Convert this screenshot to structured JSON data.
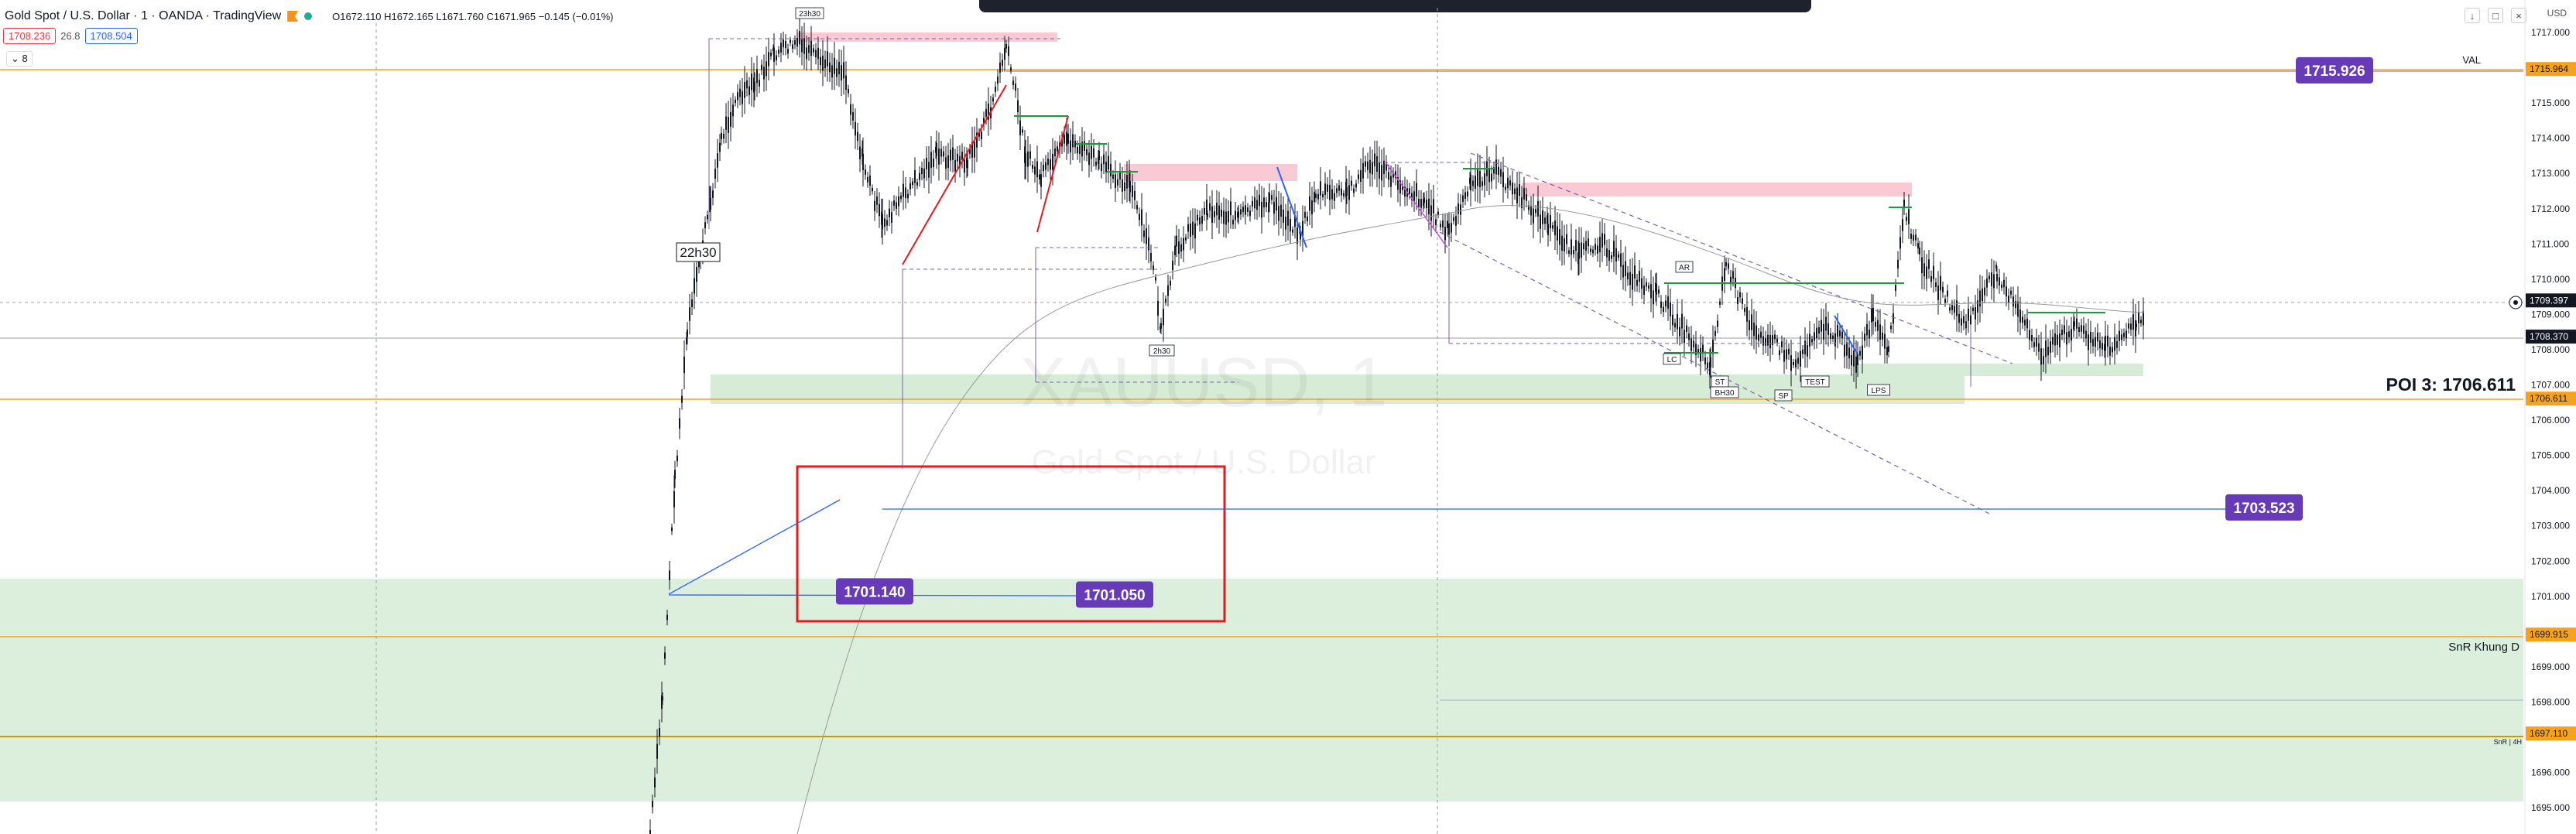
{
  "header": {
    "symbol": "Gold Spot / U.S. Dollar · 1 · OANDA · TradingView",
    "ohlc": "O1672.110 H1672.165 L1671.760 C1671.965 −0.145 (−0.01%)",
    "sell_price": "1708.236",
    "spread": "26.8",
    "buy_price": "1708.504",
    "collapse_label": "⌄ 8"
  },
  "currency": "USD",
  "watermark": {
    "symbol": "XAUUSD, 1",
    "name": "Gold Spot / U.S. Dollar"
  },
  "axis": {
    "ticks": [
      "1717.000",
      "1716.000",
      "1715.000",
      "1714.000",
      "1713.000",
      "1712.000",
      "1711.000",
      "1710.000",
      "1709.000",
      "1708.000",
      "1707.000",
      "1706.000",
      "1705.000",
      "1704.000",
      "1703.000",
      "1702.000",
      "1701.000",
      "1700.000",
      "1699.000",
      "1698.000",
      "1697.000",
      "1696.000",
      "1695.000"
    ],
    "tags": [
      {
        "text": "1715.964",
        "price": 1715.964,
        "style": "orange"
      },
      {
        "text": "1709.397",
        "price": 1709.397,
        "style": "dark"
      },
      {
        "text": "1708.370",
        "price": 1708.37,
        "style": "dark"
      },
      {
        "text": "1706.611",
        "price": 1706.611,
        "style": "orange"
      },
      {
        "text": "1699.915",
        "price": 1699.915,
        "style": "orange"
      },
      {
        "text": "1697.110",
        "price": 1697.11,
        "style": "orange"
      }
    ]
  },
  "labels": {
    "val": "VAL",
    "poi": "POI 3: 1706.611",
    "snr": "SnR Khung D",
    "snr_small": "SnR | 4H",
    "time_2330": "23h30",
    "time_2230": "22h30",
    "time_2h30": "2h30",
    "wyckoff": [
      "AR",
      "LC",
      "ST",
      "BH30",
      "SP",
      "TEST",
      "LPS"
    ]
  },
  "callouts": [
    {
      "text": "1715.926",
      "price": 1715.926
    },
    {
      "text": "1701.140",
      "price": 1701.14
    },
    {
      "text": "1701.050",
      "price": 1701.05
    },
    {
      "text": "1703.523",
      "price": 1703.523
    }
  ],
  "colors": {
    "purple": "#673ab7",
    "orange": "#f7a21b",
    "green_zone": "#cfe8cf",
    "pink_zone": "#f9c9d4",
    "red_box": "#e8181d",
    "blue_line": "#2962ff"
  }
}
